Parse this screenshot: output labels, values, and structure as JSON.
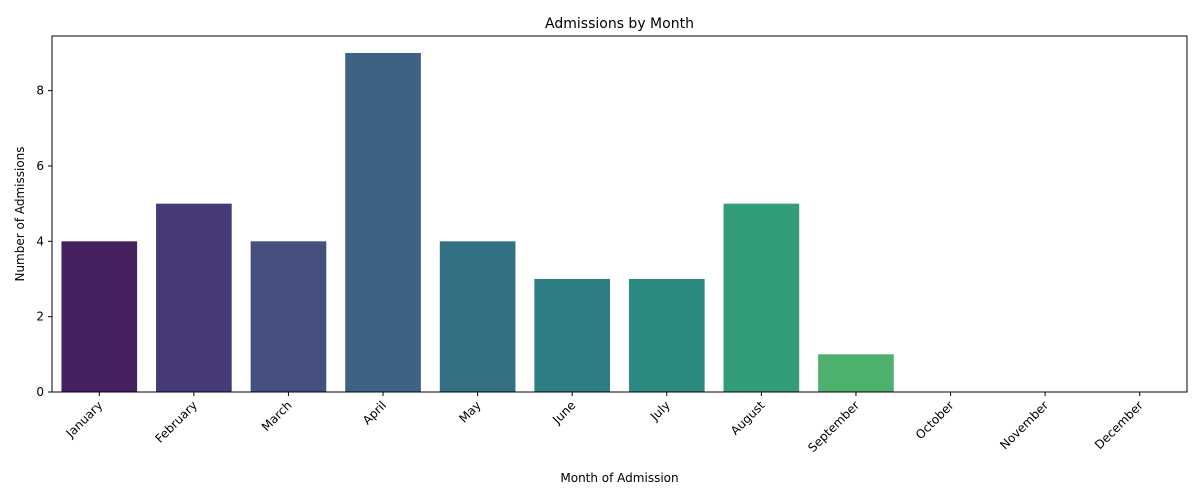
{
  "chart_data": {
    "type": "bar",
    "title": "Admissions by Month",
    "xlabel": "Month of Admission",
    "ylabel": "Number of Admissions",
    "categories": [
      "January",
      "February",
      "March",
      "April",
      "May",
      "June",
      "July",
      "August",
      "September",
      "October",
      "November",
      "December"
    ],
    "values": [
      4,
      5,
      4,
      9,
      4,
      3,
      3,
      5,
      1,
      0,
      0,
      0
    ],
    "ylim": [
      0,
      9.45
    ],
    "yticks": [
      0,
      2,
      4,
      6,
      8
    ],
    "grid": false,
    "legend": "none",
    "x_tick_rotation_deg": 45,
    "bar_colors": [
      "#46215f",
      "#473a77",
      "#46507f",
      "#3e6283",
      "#347084",
      "#2f7e84",
      "#2b8b80",
      "#339d78",
      "#4db06b",
      "#8bc94a",
      "#c4d84a",
      "#eadf58"
    ]
  }
}
